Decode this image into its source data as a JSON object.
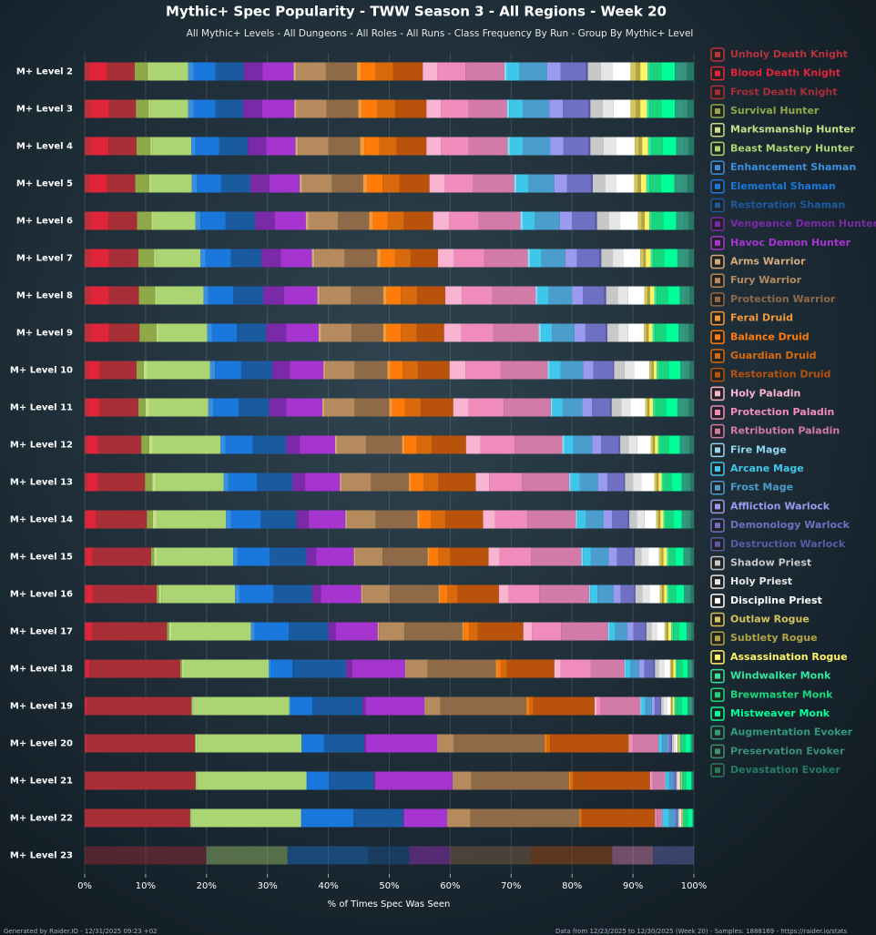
{
  "chart_data": {
    "type": "stacked-bar-horizontal",
    "title": "Mythic+ Spec Popularity - TWW Season 3 - All Regions - Week 20",
    "subtitle": "All Mythic+ Levels - All Dungeons - All Roles - All Runs - Class Frequency By Run - Group By Mythic+ Level",
    "x_label": "% of Times Spec Was Seen",
    "footer_left": "Generated by Raider.IO - 12/31/2025 09:23 +02",
    "footer_right": "Data from 12/23/2025 to 12/30/2025 (Week 20) - Samples: 1888169 - https://raider.io/stats",
    "categories": [
      "M+ Level 2",
      "M+ Level 3",
      "M+ Level 4",
      "M+ Level 5",
      "M+ Level 6",
      "M+ Level 7",
      "M+ Level 8",
      "M+ Level 9",
      "M+ Level 10",
      "M+ Level 11",
      "M+ Level 12",
      "M+ Level 13",
      "M+ Level 14",
      "M+ Level 15",
      "M+ Level 16",
      "M+ Level 17",
      "M+ Level 18",
      "M+ Level 19",
      "M+ Level 20",
      "M+ Level 21",
      "M+ Level 22",
      "M+ Level 23"
    ],
    "xlim": [
      0,
      100
    ],
    "xticks": [
      {
        "value": 0,
        "label": "0%"
      },
      {
        "value": 10,
        "label": "10%"
      },
      {
        "value": 20,
        "label": "20%"
      },
      {
        "value": 30,
        "label": "30%"
      },
      {
        "value": 40,
        "label": "40%"
      },
      {
        "value": 50,
        "label": "50%"
      },
      {
        "value": 60,
        "label": "60%"
      },
      {
        "value": 70,
        "label": "70%"
      },
      {
        "value": 80,
        "label": "80%"
      },
      {
        "value": 90,
        "label": "90%"
      },
      {
        "value": 100,
        "label": "100%"
      }
    ],
    "grid": true,
    "legend": "right",
    "series": [
      {
        "name": "Unholy Death Knight",
        "color": "#b8323c",
        "values": [
          0.7,
          0.8,
          0.8,
          0.7,
          0.8,
          0.8,
          0.8,
          0.8,
          0.5,
          0.5,
          0.4,
          0.4,
          0.3,
          0.2,
          0.2,
          0.2,
          0.2,
          0.1,
          0.1,
          0.1,
          0.1,
          0
        ]
      },
      {
        "name": "Blood Death Knight",
        "color": "#e0253a",
        "values": [
          3.0,
          3.2,
          3.1,
          3.0,
          3.1,
          3.2,
          3.2,
          3.2,
          2.0,
          2.0,
          1.8,
          1.8,
          1.6,
          1.1,
          1.2,
          1.0,
          0.6,
          0.3,
          0.2,
          0.1,
          0.1,
          0
        ]
      },
      {
        "name": "Frost Death Knight",
        "color": "#a82e38",
        "values": [
          4.5,
          4.4,
          4.6,
          4.6,
          4.7,
          4.8,
          4.9,
          5.0,
          6.0,
          6.3,
          7.1,
          7.7,
          8.3,
          9.6,
          10.4,
          12.3,
          14.9,
          17.1,
          17.8,
          18.0,
          17.1,
          20.0
        ]
      },
      {
        "name": "Survival Hunter",
        "color": "#8fa848",
        "values": [
          2.2,
          2.1,
          2.3,
          2.3,
          2.4,
          2.6,
          2.7,
          2.8,
          1.2,
          1.2,
          1.3,
          1.2,
          1.0,
          0.5,
          0.4,
          0.4,
          0.3,
          0.2,
          0.1,
          0.1,
          0.1,
          0
        ]
      },
      {
        "name": "Marksmanship Hunter",
        "color": "#c6e08a",
        "values": [
          0.3,
          0.3,
          0.3,
          0.3,
          0.3,
          0.3,
          0.3,
          0.3,
          0.6,
          0.6,
          0.6,
          0.6,
          0.6,
          0.5,
          0.4,
          0.3,
          0.3,
          0.2,
          0.2,
          0.1,
          0.1,
          0
        ]
      },
      {
        "name": "Beast Mastery Hunter",
        "color": "#abd473",
        "values": [
          6.3,
          6.2,
          6.4,
          6.7,
          6.9,
          7.3,
          7.6,
          8.0,
          10.3,
          9.7,
          11.1,
          11.1,
          11.4,
          12.5,
          12.1,
          13.1,
          13.9,
          15.7,
          17.2,
          18.0,
          18.0,
          13.3
        ]
      },
      {
        "name": "Enhancement Shaman",
        "color": "#3a8ee0",
        "values": [
          0.9,
          0.9,
          0.7,
          0.8,
          0.8,
          0.8,
          0.8,
          0.8,
          0.8,
          0.8,
          0.8,
          0.8,
          0.8,
          0.7,
          0.7,
          0.6,
          0.3,
          0.2,
          0.1,
          0.1,
          0.1,
          0
        ]
      },
      {
        "name": "Elemental Shaman",
        "color": "#1a78dc",
        "values": [
          3.6,
          3.6,
          3.9,
          4.0,
          4.1,
          4.2,
          4.1,
          4.1,
          4.3,
          4.2,
          4.5,
          4.7,
          4.9,
          5.3,
          5.6,
          5.6,
          3.6,
          3.6,
          3.6,
          3.6,
          8.5,
          13.3
        ]
      },
      {
        "name": "Restoration Shaman",
        "color": "#1a5ba0",
        "values": [
          4.6,
          4.5,
          4.7,
          4.8,
          4.9,
          5.0,
          4.9,
          4.8,
          5.1,
          5.0,
          5.5,
          5.8,
          5.9,
          6.0,
          6.3,
          6.5,
          8.8,
          8.2,
          6.6,
          7.4,
          8.2,
          6.7
        ]
      },
      {
        "name": "Vengeance Demon Hunter",
        "color": "#7a2aa6",
        "values": [
          3.1,
          3.1,
          3.0,
          3.1,
          3.2,
          3.2,
          3.4,
          3.3,
          2.9,
          2.8,
          2.2,
          2.1,
          2.0,
          1.6,
          1.5,
          1.2,
          1.0,
          0.5,
          0.3,
          0.2,
          0.1,
          0
        ]
      },
      {
        "name": "Havoc Demon Hunter",
        "color": "#a635d0",
        "values": [
          5.1,
          5.3,
          4.8,
          5.0,
          5.1,
          5.1,
          5.5,
          5.3,
          5.5,
          5.9,
          5.8,
          5.7,
          6.0,
          6.2,
          6.6,
          6.9,
          8.7,
          9.7,
          11.7,
          12.7,
          7.1,
          6.7
        ]
      },
      {
        "name": "Arms Warrior",
        "color": "#d2aa7c",
        "values": [
          0.4,
          0.4,
          0.4,
          0.4,
          0.4,
          0.4,
          0.4,
          0.4,
          0.3,
          0.3,
          0.3,
          0.3,
          0.3,
          0.2,
          0.2,
          0.2,
          0.1,
          0.1,
          0.1,
          0.1,
          0.1,
          0
        ]
      },
      {
        "name": "Fury Warrior",
        "color": "#b58a5c",
        "values": [
          4.9,
          4.9,
          5.0,
          4.9,
          4.9,
          5.0,
          5.1,
          5.0,
          4.8,
          5.0,
          4.8,
          4.8,
          4.7,
          4.5,
          4.5,
          4.2,
          3.6,
          2.5,
          2.6,
          3.0,
          3.7,
          0
        ]
      },
      {
        "name": "Protection Warrior",
        "color": "#8e6a48",
        "values": [
          5.1,
          5.2,
          5.2,
          5.1,
          5.1,
          5.3,
          5.3,
          5.2,
          5.4,
          5.7,
          5.9,
          6.2,
          6.8,
          7.4,
          8.0,
          9.5,
          11.2,
          14.1,
          14.9,
          16.0,
          17.9,
          13.3
        ]
      },
      {
        "name": "Feral Druid",
        "color": "#f29a3a",
        "values": [
          0.6,
          0.6,
          0.7,
          0.7,
          0.6,
          0.6,
          0.6,
          0.6,
          0.5,
          0.5,
          0.4,
          0.4,
          0.4,
          0.3,
          0.3,
          0.2,
          0.2,
          0.1,
          0.1,
          0.1,
          0.1,
          0
        ]
      },
      {
        "name": "Balance Druid",
        "color": "#ff7c0a",
        "values": [
          2.5,
          2.6,
          2.5,
          2.5,
          2.4,
          2.3,
          2.3,
          2.3,
          2.0,
          2.1,
          2.0,
          2.0,
          1.8,
          1.4,
          1.2,
          0.9,
          0.6,
          0.4,
          0.3,
          0.2,
          0.1,
          0
        ]
      },
      {
        "name": "Guardian Druid",
        "color": "#d8690c",
        "values": [
          2.8,
          2.9,
          2.8,
          2.8,
          2.7,
          2.6,
          2.7,
          2.6,
          2.5,
          2.6,
          2.5,
          2.5,
          2.4,
          2.0,
          1.6,
          1.4,
          1.0,
          0.6,
          0.5,
          0.4,
          0.2,
          0
        ]
      },
      {
        "name": "Restoration Druid",
        "color": "#b9520a",
        "values": [
          4.9,
          5.1,
          4.9,
          4.9,
          4.8,
          4.5,
          4.6,
          4.5,
          5.2,
          5.3,
          5.6,
          6.1,
          6.2,
          6.3,
          6.8,
          7.5,
          7.8,
          10.1,
          12.9,
          12.6,
          12.0,
          13.3
        ]
      },
      {
        "name": "Holy Paladin",
        "color": "#f9b4d2",
        "values": [
          2.4,
          2.4,
          2.4,
          2.5,
          2.6,
          2.6,
          2.7,
          2.8,
          2.6,
          2.5,
          2.4,
          2.2,
          2.0,
          1.8,
          1.6,
          1.4,
          1.0,
          0.4,
          0.2,
          0.1,
          0.1,
          0
        ]
      },
      {
        "name": "Protection Paladin",
        "color": "#f08cbc",
        "values": [
          4.6,
          4.5,
          4.5,
          4.7,
          4.9,
          5.0,
          5.0,
          5.3,
          5.8,
          5.8,
          5.6,
          5.4,
          5.3,
          5.2,
          5.0,
          4.8,
          5.0,
          0.6,
          0.5,
          0.3,
          0.2,
          6.7
        ]
      },
      {
        "name": "Retribution Paladin",
        "color": "#d27aa8",
        "values": [
          6.4,
          6.3,
          6.4,
          6.7,
          6.8,
          7.1,
          7.1,
          7.4,
          7.7,
          7.7,
          7.8,
          7.7,
          7.9,
          8.2,
          8.2,
          7.7,
          5.5,
          6.5,
          4.2,
          2.1,
          0.9,
          0
        ]
      },
      {
        "name": "Fire Mage",
        "color": "#8fd6f2",
        "values": [
          0.4,
          0.4,
          0.4,
          0.4,
          0.4,
          0.4,
          0.4,
          0.4,
          0.3,
          0.3,
          0.3,
          0.3,
          0.3,
          0.3,
          0.2,
          0.2,
          0.2,
          0.2,
          0.1,
          0.1,
          0.1,
          0
        ]
      },
      {
        "name": "Arcane Mage",
        "color": "#3fc7eb",
        "values": [
          2.1,
          2.2,
          2.1,
          2.0,
          2.0,
          1.9,
          1.8,
          1.8,
          1.8,
          1.6,
          1.5,
          1.5,
          1.4,
          1.3,
          1.2,
          1.0,
          0.8,
          0.6,
          0.5,
          0.5,
          1.0,
          0
        ]
      },
      {
        "name": "Frost Mage",
        "color": "#4b9ecb",
        "values": [
          4.5,
          4.4,
          4.5,
          4.2,
          4.1,
          3.9,
          3.8,
          3.7,
          3.7,
          3.3,
          3.1,
          3.0,
          2.9,
          2.9,
          2.6,
          2.0,
          1.4,
          1.1,
          0.9,
          0.7,
          1.0,
          0
        ]
      },
      {
        "name": "Affliction Warlock",
        "color": "#9a9bf0",
        "values": [
          2.2,
          2.2,
          2.2,
          2.1,
          2.0,
          1.9,
          1.8,
          1.8,
          1.7,
          1.6,
          1.5,
          1.5,
          1.4,
          1.4,
          1.2,
          1.0,
          0.9,
          0.5,
          0.2,
          0.1,
          0.1,
          0
        ]
      },
      {
        "name": "Demonology Warlock",
        "color": "#6f70c4",
        "values": [
          4.2,
          4.2,
          4.1,
          3.9,
          3.8,
          3.7,
          3.5,
          3.3,
          3.2,
          3.0,
          2.9,
          2.7,
          2.6,
          2.7,
          2.2,
          1.9,
          1.5,
          0.9,
          0.4,
          0.3,
          0.3,
          6.7
        ]
      },
      {
        "name": "Destruction Warlock",
        "color": "#5a5ba6",
        "values": [
          0.3,
          0.3,
          0.3,
          0.3,
          0.3,
          0.3,
          0.3,
          0.3,
          0.2,
          0.2,
          0.2,
          0.2,
          0.2,
          0.2,
          0.2,
          0.2,
          0.2,
          0.1,
          0.1,
          0.1,
          0.1,
          0
        ]
      },
      {
        "name": "Shadow Priest",
        "color": "#c8c8c8",
        "values": [
          2.1,
          2.0,
          2.2,
          2.0,
          2.0,
          1.9,
          1.9,
          1.8,
          1.7,
          1.6,
          1.4,
          1.3,
          1.2,
          1.1,
          1.1,
          0.8,
          0.6,
          0.4,
          0.3,
          0.2,
          0.1,
          0
        ]
      },
      {
        "name": "Holy Priest",
        "color": "#e6e6e6",
        "values": [
          1.9,
          1.8,
          2.0,
          1.8,
          1.8,
          1.7,
          1.7,
          1.6,
          1.6,
          1.5,
          1.4,
          1.4,
          1.3,
          1.2,
          1.2,
          0.9,
          0.9,
          0.6,
          0.3,
          0.2,
          0.2,
          0
        ]
      },
      {
        "name": "Discipline Priest",
        "color": "#ffffff",
        "values": [
          3.0,
          2.8,
          3.1,
          3.0,
          2.9,
          2.8,
          2.7,
          2.6,
          2.5,
          2.4,
          2.2,
          2.1,
          1.9,
          1.7,
          1.7,
          1.3,
          1.0,
          0.6,
          0.3,
          0.2,
          0.2,
          0
        ]
      },
      {
        "name": "Outlaw Rogue",
        "color": "#d4c45a",
        "values": [
          0.9,
          0.9,
          0.7,
          0.6,
          0.6,
          0.5,
          0.5,
          0.4,
          0.4,
          0.4,
          0.4,
          0.4,
          0.4,
          0.4,
          0.4,
          0.3,
          0.2,
          0.1,
          0.1,
          0.1,
          0.1,
          0
        ]
      },
      {
        "name": "Subtlety Rogue",
        "color": "#b0a442",
        "values": [
          0.7,
          0.7,
          0.5,
          0.5,
          0.5,
          0.4,
          0.4,
          0.4,
          0.3,
          0.3,
          0.3,
          0.3,
          0.3,
          0.3,
          0.3,
          0.3,
          0.3,
          0.2,
          0.1,
          0.1,
          0.1,
          0
        ]
      },
      {
        "name": "Assassination Rogue",
        "color": "#fff468",
        "values": [
          1.2,
          1.1,
          1.0,
          0.9,
          0.8,
          0.8,
          0.7,
          0.6,
          0.5,
          0.6,
          0.5,
          0.5,
          0.5,
          0.6,
          0.5,
          0.5,
          0.4,
          0.3,
          0.2,
          0.1,
          0.1,
          0
        ]
      },
      {
        "name": "Windwalker Monk",
        "color": "#33e6a0",
        "values": [
          0.4,
          0.4,
          0.5,
          0.5,
          0.4,
          0.4,
          0.4,
          0.4,
          0.4,
          0.4,
          0.3,
          0.3,
          0.3,
          0.3,
          0.3,
          0.3,
          0.2,
          0.2,
          0.1,
          0.1,
          0.1,
          0
        ]
      },
      {
        "name": "Brewmaster Monk",
        "color": "#19d67e",
        "values": [
          1.9,
          2.0,
          1.9,
          1.9,
          1.9,
          1.8,
          1.8,
          1.8,
          1.6,
          1.7,
          1.5,
          1.4,
          1.3,
          1.1,
          1.2,
          1.0,
          0.9,
          1.0,
          0.8,
          0.7,
          0.7,
          0
        ]
      },
      {
        "name": "Mistweaver Monk",
        "color": "#00ff98",
        "values": [
          2.2,
          2.2,
          2.2,
          2.2,
          2.1,
          2.2,
          2.0,
          2.1,
          1.9,
          1.9,
          1.8,
          1.6,
          1.4,
          1.3,
          1.3,
          1.2,
          0.9,
          1.0,
          0.9,
          0.8,
          0.8,
          0
        ]
      },
      {
        "name": "Augmentation Evoker",
        "color": "#2f9a7e",
        "values": [
          1.3,
          1.4,
          1.3,
          1.4,
          1.3,
          1.2,
          1.0,
          1.1,
          1.0,
          1.2,
          1.0,
          0.9,
          0.9,
          0.8,
          0.7,
          0.5,
          0.4,
          0.4,
          0.2,
          0.1,
          0.1,
          0
        ]
      },
      {
        "name": "Preservation Evoker",
        "color": "#3a8f7a",
        "values": [
          0.7,
          0.7,
          0.7,
          0.8,
          0.7,
          0.7,
          0.6,
          0.6,
          0.5,
          0.7,
          0.6,
          0.5,
          0.5,
          0.4,
          0.4,
          0.3,
          0.3,
          0.3,
          0.1,
          0.1,
          0,
          0
        ]
      },
      {
        "name": "Devastation Evoker",
        "color": "#257a66",
        "values": [
          1.1,
          1.0,
          0.9,
          1.0,
          0.9,
          0.8,
          0.7,
          0.8,
          0.7,
          0.8,
          0.7,
          0.6,
          0.6,
          0.5,
          0.5,
          0.4,
          0.3,
          0.3,
          0.2,
          0.2,
          0.1,
          0
        ]
      }
    ]
  }
}
